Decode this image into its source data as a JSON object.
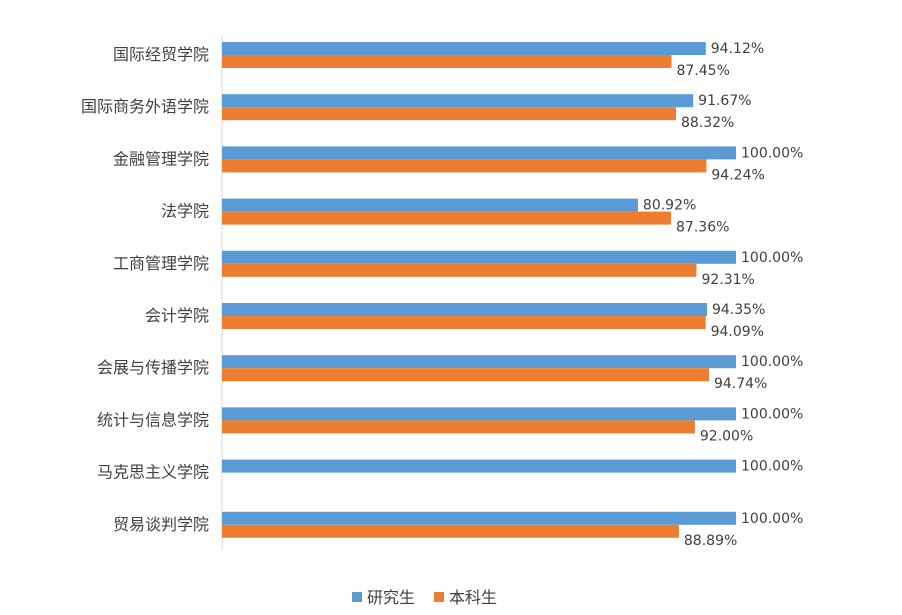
{
  "chart_data": {
    "type": "bar",
    "orientation": "horizontal",
    "categories": [
      "国际经贸学院",
      "国际商务外语学院",
      "金融管理学院",
      "法学院",
      "工商管理学院",
      "会计学院",
      "会展与传播学院",
      "统计与信息学院",
      "马克思主义学院",
      "贸易谈判学院"
    ],
    "series": [
      {
        "name": "研究生",
        "color": "#5B9BD5",
        "values": [
          94.12,
          91.67,
          100.0,
          80.92,
          100.0,
          94.35,
          100.0,
          100.0,
          100.0,
          100.0
        ],
        "labels": [
          "94.12%",
          "91.67%",
          "100.00%",
          "80.92%",
          "100.00%",
          "94.35%",
          "100.00%",
          "100.00%",
          "100.00%",
          "100.00%"
        ]
      },
      {
        "name": "本科生",
        "color": "#ED7D31",
        "values": [
          87.45,
          88.32,
          94.24,
          87.36,
          92.31,
          94.09,
          94.74,
          92.0,
          null,
          88.89
        ],
        "labels": [
          "87.45%",
          "88.32%",
          "94.24%",
          "87.36%",
          "92.31%",
          "94.09%",
          "94.74%",
          "92.00%",
          "",
          "88.89%"
        ]
      }
    ],
    "xlim": [
      0,
      100
    ],
    "grid": false,
    "legend_position": "bottom"
  }
}
